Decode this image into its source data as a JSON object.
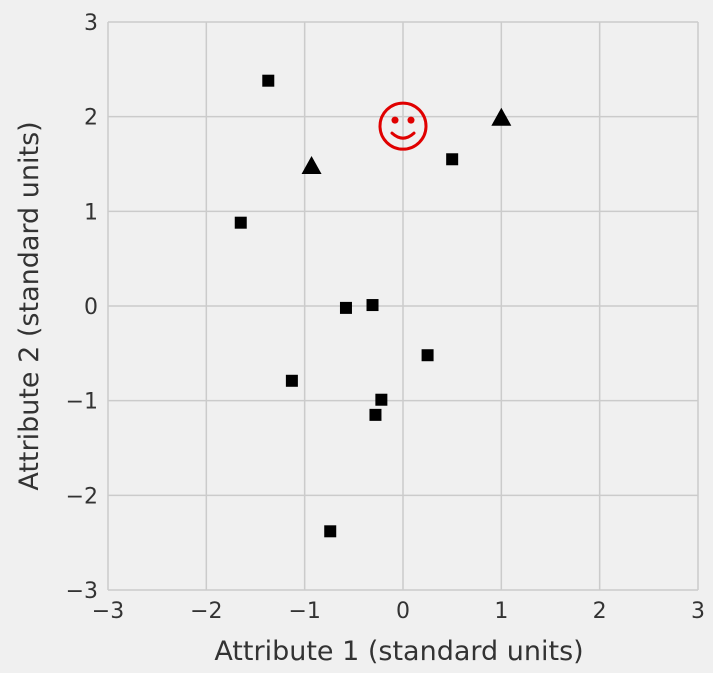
{
  "chart_data": {
    "type": "scatter",
    "xlabel": "Attribute 1 (standard units)",
    "ylabel": "Attribute 2 (standard units)",
    "xlim": [
      -3,
      3
    ],
    "ylim": [
      -3,
      3
    ],
    "xticks": [
      "−3",
      "−2",
      "−1",
      "0",
      "1",
      "2",
      "3"
    ],
    "yticks": [
      "−3",
      "−2",
      "−1",
      "0",
      "1",
      "2",
      "3"
    ],
    "grid": true,
    "series": [
      {
        "marker": "square",
        "color": "#000000",
        "points": [
          {
            "x": -1.37,
            "y": 2.38
          },
          {
            "x": -1.65,
            "y": 0.88
          },
          {
            "x": 0.5,
            "y": 1.55
          },
          {
            "x": -0.58,
            "y": -0.02
          },
          {
            "x": -0.31,
            "y": 0.01
          },
          {
            "x": 0.25,
            "y": -0.52
          },
          {
            "x": -1.13,
            "y": -0.79
          },
          {
            "x": -0.22,
            "y": -0.99
          },
          {
            "x": -0.28,
            "y": -1.15
          },
          {
            "x": -0.74,
            "y": -2.38
          }
        ]
      },
      {
        "marker": "triangle",
        "color": "#000000",
        "points": [
          {
            "x": -0.93,
            "y": 1.47
          },
          {
            "x": 1.0,
            "y": 1.98
          }
        ]
      }
    ],
    "annotations": [
      {
        "type": "smiley-icon",
        "color": "#e00000",
        "x": 0.0,
        "y": 1.9
      }
    ]
  }
}
